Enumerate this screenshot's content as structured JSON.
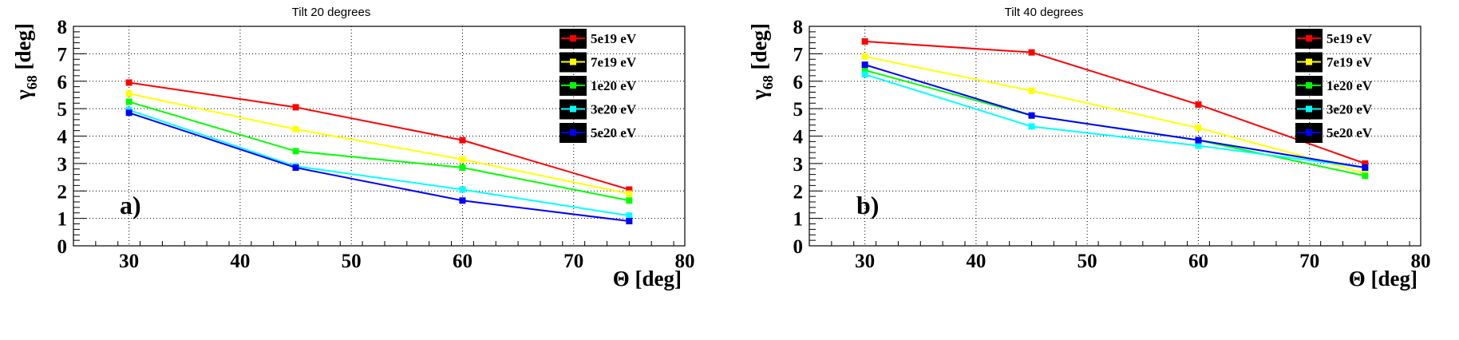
{
  "chart_data": [
    {
      "type": "line",
      "title": "Tilt 20 degrees",
      "panel_label": "a)",
      "xlabel": "Θ [deg]",
      "ylabel": "γ",
      "ylabel_sub": "68",
      "ylabel_unit": " [deg]",
      "xlim": [
        25,
        80
      ],
      "ylim": [
        0,
        8
      ],
      "xticks": [
        30,
        40,
        50,
        60,
        70,
        80
      ],
      "yticks": [
        0,
        1,
        2,
        3,
        4,
        5,
        6,
        7,
        8
      ],
      "grid": true,
      "legend_position": "top-right",
      "x": [
        30,
        45,
        60,
        75
      ],
      "series": [
        {
          "name": "5e19 eV",
          "color": "#ff0000",
          "values": [
            5.95,
            5.05,
            3.85,
            2.05
          ]
        },
        {
          "name": "7e19 eV",
          "color": "#ffff00",
          "values": [
            5.55,
            4.25,
            3.15,
            1.9
          ]
        },
        {
          "name": "1e20 eV",
          "color": "#00ff00",
          "values": [
            5.25,
            3.45,
            2.85,
            1.65
          ]
        },
        {
          "name": "3e20 eV",
          "color": "#00ffff",
          "values": [
            4.95,
            2.9,
            2.05,
            1.1
          ]
        },
        {
          "name": "5e20 eV",
          "color": "#0000ff",
          "values": [
            4.85,
            2.85,
            1.65,
            0.9
          ]
        }
      ]
    },
    {
      "type": "line",
      "title": "Tilt 40 degrees",
      "panel_label": "b)",
      "xlabel": "Θ [deg]",
      "ylabel": "γ",
      "ylabel_sub": "68",
      "ylabel_unit": " [deg]",
      "xlim": [
        25,
        80
      ],
      "ylim": [
        0,
        8
      ],
      "xticks": [
        30,
        40,
        50,
        60,
        70,
        80
      ],
      "yticks": [
        0,
        1,
        2,
        3,
        4,
        5,
        6,
        7,
        8
      ],
      "grid": true,
      "legend_position": "top-right",
      "x": [
        30,
        45,
        60,
        75
      ],
      "series": [
        {
          "name": "5e19 eV",
          "color": "#ff0000",
          "values": [
            7.45,
            7.05,
            5.15,
            3.0
          ]
        },
        {
          "name": "7e19 eV",
          "color": "#ffff00",
          "values": [
            6.9,
            5.65,
            4.3,
            2.65
          ]
        },
        {
          "name": "1e20 eV",
          "color": "#00ff00",
          "values": [
            6.4,
            4.75,
            3.85,
            2.55
          ]
        },
        {
          "name": "3e20 eV",
          "color": "#00ffff",
          "values": [
            6.25,
            4.35,
            3.65,
            2.85
          ]
        },
        {
          "name": "5e20 eV",
          "color": "#0000ff",
          "values": [
            6.6,
            4.75,
            3.85,
            2.85
          ]
        }
      ]
    }
  ]
}
